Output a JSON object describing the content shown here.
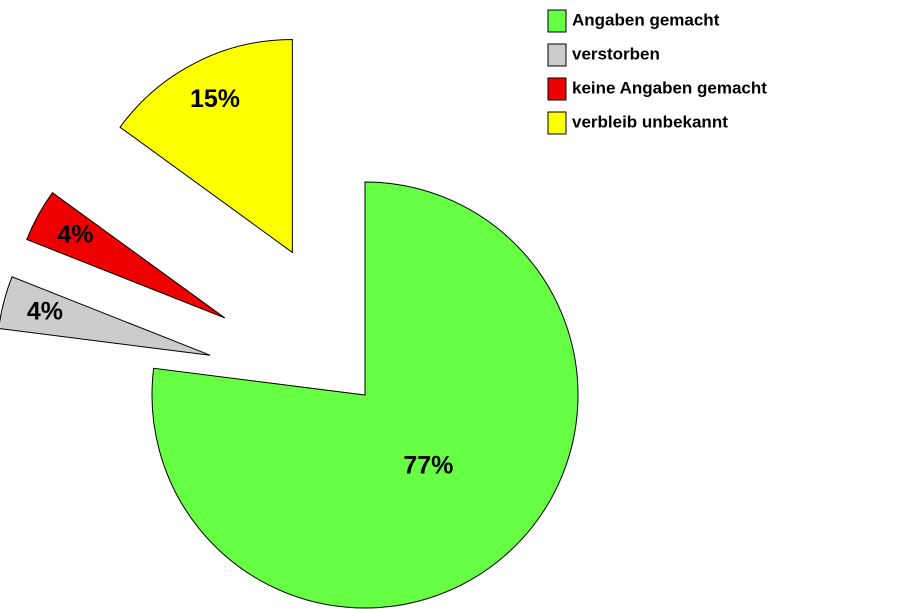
{
  "chart_data": {
    "type": "pie",
    "categories": [
      "Angaben gemacht",
      "verstorben",
      "keine Angaben gemacht",
      "verbleib unbekannt"
    ],
    "values": [
      77,
      4,
      4,
      15
    ],
    "value_labels": [
      "77%",
      "4%",
      "4%",
      "15%"
    ],
    "colors": [
      "#66ff44",
      "#cccccc",
      "#ee0000",
      "#ffff00"
    ],
    "legend": "top-right"
  }
}
